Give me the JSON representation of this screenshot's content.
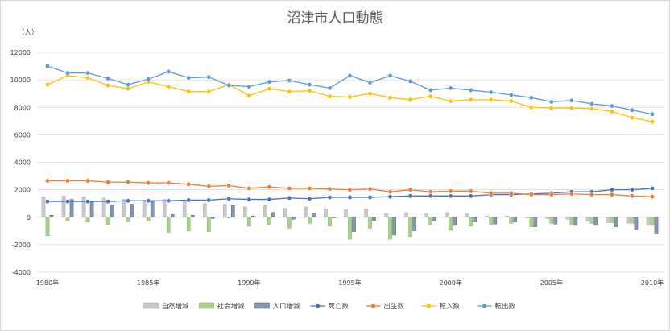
{
  "chart_data": {
    "type": "bar+line",
    "title": "沼津市人口動態",
    "yunit": "（人）",
    "ylim": [
      -4000,
      12000
    ],
    "yticks": [
      -4000,
      -2000,
      0,
      2000,
      4000,
      6000,
      8000,
      10000,
      12000
    ],
    "x": [
      1980,
      1981,
      1982,
      1983,
      1984,
      1985,
      1986,
      1987,
      1988,
      1989,
      1990,
      1991,
      1992,
      1993,
      1994,
      1995,
      1996,
      1997,
      1998,
      1999,
      2000,
      2001,
      2002,
      2003,
      2004,
      2005,
      2006,
      2007,
      2008,
      2009,
      2010
    ],
    "xticks": [
      {
        "year": 1980,
        "label": "1980年"
      },
      {
        "year": 1985,
        "label": "1985年"
      },
      {
        "year": 1990,
        "label": "1990年"
      },
      {
        "year": 1995,
        "label": "1995年"
      },
      {
        "year": 2000,
        "label": "2000年"
      },
      {
        "year": 2005,
        "label": "2005年"
      },
      {
        "year": 2010,
        "label": "2010年"
      }
    ],
    "grid": true,
    "legend_position": "bottom",
    "bar_series": [
      {
        "name": "自然増減",
        "color": "#c9c9c9",
        "border": "#a5a5a5",
        "values": [
          1500,
          1550,
          1500,
          1400,
          1300,
          1250,
          1300,
          1150,
          1000,
          950,
          750,
          850,
          650,
          750,
          600,
          550,
          600,
          300,
          350,
          300,
          350,
          300,
          100,
          100,
          -50,
          -100,
          -150,
          -300,
          -400,
          -450,
          -600
        ]
      },
      {
        "name": "社会増減",
        "color": "#a9d18e",
        "border": "#70ad47",
        "values": [
          -1350,
          -250,
          -350,
          -550,
          -350,
          -250,
          -1100,
          -1000,
          -1050,
          -50,
          -650,
          -550,
          -800,
          -450,
          -650,
          -1600,
          -800,
          -1600,
          -1400,
          -550,
          -950,
          -650,
          -550,
          -450,
          -700,
          -450,
          -550,
          -450,
          -400,
          -450,
          -600
        ]
      },
      {
        "name": "人口増減",
        "color": "#8497b0",
        "border": "#44546a",
        "values": [
          150,
          1300,
          1150,
          900,
          950,
          1150,
          200,
          150,
          -100,
          850,
          100,
          350,
          -150,
          300,
          -50,
          -1050,
          -250,
          -1300,
          -1000,
          -250,
          -600,
          -350,
          -500,
          -350,
          -700,
          -500,
          -600,
          -600,
          -700,
          -900,
          -1200
        ]
      }
    ],
    "line_series": [
      {
        "name": "死亡数",
        "color": "#4472c4",
        "values": [
          1150,
          1150,
          1150,
          1150,
          1200,
          1200,
          1200,
          1250,
          1250,
          1350,
          1300,
          1300,
          1400,
          1350,
          1450,
          1450,
          1450,
          1500,
          1550,
          1550,
          1550,
          1550,
          1650,
          1650,
          1700,
          1750,
          1850,
          1850,
          2000,
          2000,
          2100
        ]
      },
      {
        "name": "出生数",
        "color": "#ed7d31",
        "values": [
          2650,
          2650,
          2650,
          2550,
          2550,
          2500,
          2500,
          2400,
          2250,
          2300,
          2100,
          2200,
          2100,
          2100,
          2050,
          2000,
          2050,
          1850,
          2000,
          1850,
          1900,
          1900,
          1750,
          1750,
          1650,
          1650,
          1700,
          1650,
          1650,
          1550,
          1500
        ]
      },
      {
        "name": "転入数",
        "color": "#ffc000",
        "values": [
          9650,
          10300,
          10150,
          9600,
          9350,
          9850,
          9500,
          9150,
          9150,
          9650,
          8850,
          9350,
          9150,
          9200,
          8800,
          8750,
          9000,
          8700,
          8550,
          8800,
          8450,
          8550,
          8550,
          8450,
          8000,
          7950,
          7950,
          7900,
          7700,
          7250,
          6950
        ]
      },
      {
        "name": "転出数",
        "color": "#5b9bd5",
        "values": [
          11000,
          10500,
          10500,
          10100,
          9650,
          10050,
          10600,
          10150,
          10200,
          9600,
          9500,
          9850,
          9950,
          9650,
          9400,
          10300,
          9800,
          10300,
          9900,
          9250,
          9400,
          9250,
          9100,
          8900,
          8700,
          8400,
          8500,
          8250,
          8100,
          7800,
          7500
        ]
      }
    ]
  }
}
